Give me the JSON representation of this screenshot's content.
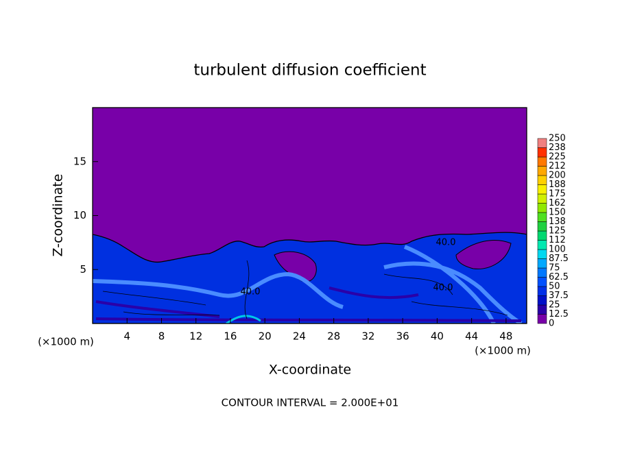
{
  "chart_data": {
    "type": "contour",
    "title": "turbulent diffusion coefficient",
    "xlabel": "X-coordinate",
    "ylabel": "Z-coordinate",
    "x_unit": "(×1000 m)",
    "contour_interval": "CONTOUR INTERVAL = 2.000E+01",
    "contour_labels": [
      "40.0",
      "40.0",
      "40.0"
    ],
    "xlim": [
      0,
      50.4
    ],
    "ylim": [
      0,
      20
    ],
    "xticks": [
      4,
      8,
      12,
      16,
      20,
      24,
      28,
      32,
      36,
      40,
      44,
      48
    ],
    "yticks": [
      5,
      10,
      15
    ],
    "colorbar": {
      "levels": [
        0,
        12.5,
        25,
        37.5,
        50,
        62.5,
        75,
        87.5,
        100,
        112,
        125,
        138,
        150,
        162,
        175,
        188,
        200,
        212,
        225,
        238,
        250
      ],
      "colors": [
        "#7800a8",
        "#2a00a8",
        "#0010c8",
        "#0030e8",
        "#0050ff",
        "#0078ff",
        "#00a8ff",
        "#00d8f0",
        "#00e8b0",
        "#00d870",
        "#20d040",
        "#50e020",
        "#90e800",
        "#d0f000",
        "#f8f000",
        "#ffd000",
        "#ffa800",
        "#ff7800",
        "#ff3000",
        "#f08080"
      ]
    }
  }
}
